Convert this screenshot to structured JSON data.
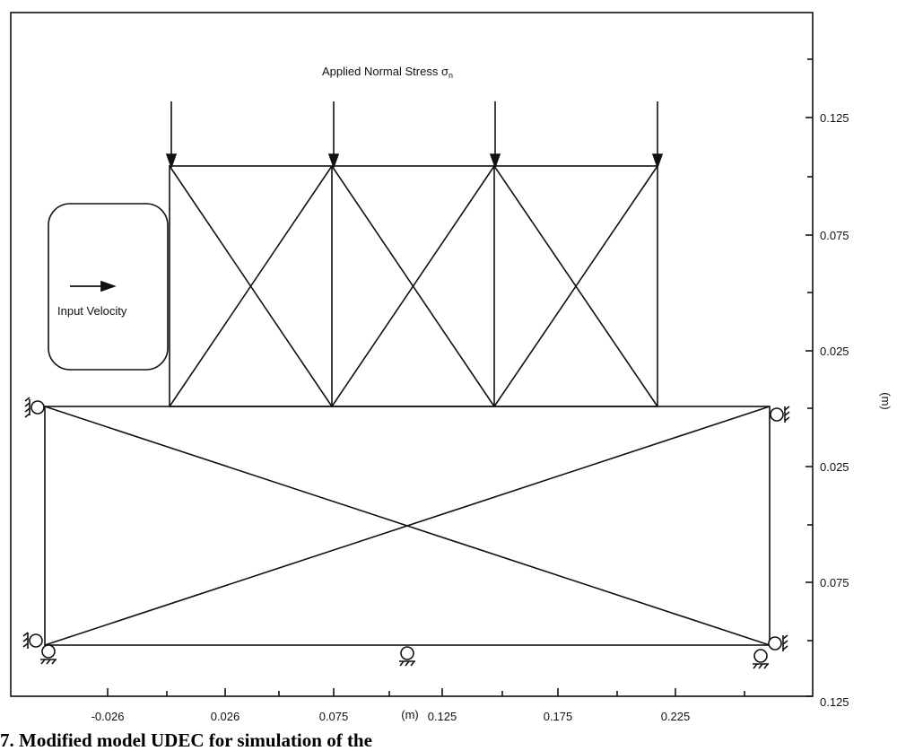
{
  "figure": {
    "annotation_top": "Applied Normal Stress",
    "sigma_symbol": "σ",
    "sigma_subscript": "n",
    "input_label": "Input Velocity",
    "x_axis_unit": "(m)",
    "y_axis_unit": "(m)",
    "x_ticks": [
      "-0.026",
      "0.026",
      "0.075",
      "0.125",
      "0.175",
      "0.225"
    ],
    "y_ticks": [
      "0.125",
      "0.075",
      "0.025",
      "0.025",
      "0.075",
      "0.125"
    ],
    "caption": "7. Modified model UDEC for simulation of the"
  },
  "colors": {
    "line": "#111111",
    "background": "#ffffff"
  }
}
